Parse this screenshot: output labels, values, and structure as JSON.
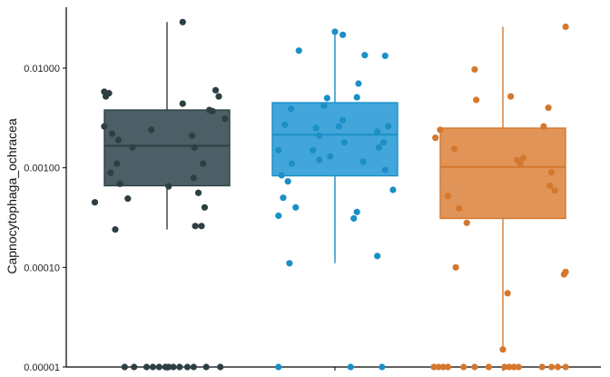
{
  "chart_data": {
    "type": "box",
    "ylabel": "Capnocytophaga_ochracea",
    "y_scale": "log10",
    "ylim": [
      1e-05,
      0.04
    ],
    "y_ticks": [
      {
        "value": 1e-05,
        "label": "0.00001"
      },
      {
        "value": 0.0001,
        "label": "0.00010"
      },
      {
        "value": 0.001,
        "label": "0.00100"
      },
      {
        "value": 0.01,
        "label": "0.01000"
      }
    ],
    "grid": false,
    "legend": "none",
    "groups": [
      {
        "color": "#2d3e44",
        "fill": "#4d5f66",
        "whisker_low": 0.00024,
        "q1": 0.00066,
        "median": 0.00166,
        "q3": 0.0038,
        "whisker_high": 0.029,
        "points": [
          {
            "x": -0.92,
            "y": 0.00045
          },
          {
            "x": -0.8,
            "y": 0.0058
          },
          {
            "x": -0.78,
            "y": 0.0052
          },
          {
            "x": -0.74,
            "y": 0.0056
          },
          {
            "x": -0.8,
            "y": 0.0026
          },
          {
            "x": -0.7,
            "y": 0.0022
          },
          {
            "x": -0.62,
            "y": 0.0019
          },
          {
            "x": -0.72,
            "y": 0.00089
          },
          {
            "x": -0.64,
            "y": 0.0011
          },
          {
            "x": -0.6,
            "y": 0.00069
          },
          {
            "x": -0.44,
            "y": 0.0016
          },
          {
            "x": -0.2,
            "y": 0.0024
          },
          {
            "x": -0.5,
            "y": 0.00049
          },
          {
            "x": -0.66,
            "y": 0.00024
          },
          {
            "x": 0.02,
            "y": 0.00065
          },
          {
            "x": 0.2,
            "y": 0.0044
          },
          {
            "x": 0.32,
            "y": 0.0021
          },
          {
            "x": 0.35,
            "y": 0.0016
          },
          {
            "x": 0.34,
            "y": 0.00079
          },
          {
            "x": 0.4,
            "y": 0.00056
          },
          {
            "x": 0.46,
            "y": 0.0011
          },
          {
            "x": 0.36,
            "y": 0.00026
          },
          {
            "x": 0.44,
            "y": 0.00026
          },
          {
            "x": 0.48,
            "y": 0.0004
          },
          {
            "x": 0.54,
            "y": 0.0038
          },
          {
            "x": 0.58,
            "y": 0.0037
          },
          {
            "x": 0.62,
            "y": 0.006
          },
          {
            "x": 0.66,
            "y": 0.0052
          },
          {
            "x": 0.74,
            "y": 0.0031
          },
          {
            "x": 0.2,
            "y": 0.029
          },
          {
            "x": -0.54,
            "y": 1e-05
          },
          {
            "x": -0.42,
            "y": 1e-05
          },
          {
            "x": -0.26,
            "y": 1e-05
          },
          {
            "x": -0.18,
            "y": 1e-05
          },
          {
            "x": -0.1,
            "y": 1e-05
          },
          {
            "x": -0.02,
            "y": 1e-05
          },
          {
            "x": 0.02,
            "y": 1e-05
          },
          {
            "x": 0.08,
            "y": 1e-05
          },
          {
            "x": 0.16,
            "y": 1e-05
          },
          {
            "x": 0.26,
            "y": 1e-05
          },
          {
            "x": 0.34,
            "y": 1e-05
          },
          {
            "x": 0.5,
            "y": 1e-05
          },
          {
            "x": 0.68,
            "y": 1e-05
          }
        ]
      },
      {
        "color": "#1b8fc6",
        "fill": "#42a6da",
        "whisker_low": 0.00011,
        "q1": 0.00083,
        "median": 0.00215,
        "q3": 0.0045,
        "whisker_high": 0.022,
        "points": [
          {
            "x": -0.72,
            "y": 0.0015
          },
          {
            "x": -0.64,
            "y": 0.0027
          },
          {
            "x": -0.56,
            "y": 0.0039
          },
          {
            "x": -0.46,
            "y": 0.015
          },
          {
            "x": -0.6,
            "y": 0.00073
          },
          {
            "x": -0.66,
            "y": 0.0005
          },
          {
            "x": -0.55,
            "y": 0.0011
          },
          {
            "x": -0.5,
            "y": 0.0004
          },
          {
            "x": -0.68,
            "y": 0.00084
          },
          {
            "x": -0.72,
            "y": 0.00033
          },
          {
            "x": -0.58,
            "y": 0.00011
          },
          {
            "x": -0.28,
            "y": 0.0015
          },
          {
            "x": -0.24,
            "y": 0.0025
          },
          {
            "x": -0.2,
            "y": 0.0021
          },
          {
            "x": -0.14,
            "y": 0.0042
          },
          {
            "x": -0.1,
            "y": 0.005
          },
          {
            "x": -0.06,
            "y": 0.0013
          },
          {
            "x": 0.05,
            "y": 0.0026
          },
          {
            "x": 0.12,
            "y": 0.0018
          },
          {
            "x": 0.1,
            "y": 0.003
          },
          {
            "x": -0.2,
            "y": 0.0012
          },
          {
            "x": 0.0,
            "y": 0.0232
          },
          {
            "x": 0.1,
            "y": 0.0216
          },
          {
            "x": 0.28,
            "y": 0.0051
          },
          {
            "x": 0.3,
            "y": 0.007
          },
          {
            "x": 0.38,
            "y": 0.0135
          },
          {
            "x": 0.36,
            "y": 0.00115
          },
          {
            "x": 0.24,
            "y": 0.00031
          },
          {
            "x": 0.28,
            "y": 0.00036
          },
          {
            "x": 0.54,
            "y": 0.0023
          },
          {
            "x": 0.56,
            "y": 0.0016
          },
          {
            "x": 0.62,
            "y": 0.0018
          },
          {
            "x": 0.64,
            "y": 0.00095
          },
          {
            "x": 0.68,
            "y": 0.0026
          },
          {
            "x": 0.74,
            "y": 0.0006
          },
          {
            "x": 0.64,
            "y": 0.0133
          },
          {
            "x": 0.54,
            "y": 0.00013
          },
          {
            "x": -0.72,
            "y": 1e-05
          },
          {
            "x": 0.2,
            "y": 1e-05
          },
          {
            "x": 0.6,
            "y": 1e-05
          }
        ]
      },
      {
        "color": "#d4782e",
        "fill": "#e09458",
        "whisker_low": 1.5e-05,
        "q1": 0.00031,
        "median": 0.00102,
        "q3": 0.0025,
        "whisker_high": 0.026,
        "points": [
          {
            "x": -0.86,
            "y": 0.002
          },
          {
            "x": -0.8,
            "y": 0.0024
          },
          {
            "x": -0.7,
            "y": 0.00052
          },
          {
            "x": -0.62,
            "y": 0.00155
          },
          {
            "x": -0.56,
            "y": 0.00039
          },
          {
            "x": -0.46,
            "y": 0.00028
          },
          {
            "x": -0.6,
            "y": 0.0001
          },
          {
            "x": -0.36,
            "y": 0.0097
          },
          {
            "x": -0.34,
            "y": 0.0048
          },
          {
            "x": 0.1,
            "y": 0.0052
          },
          {
            "x": 0.18,
            "y": 0.0012
          },
          {
            "x": 0.22,
            "y": 0.0011
          },
          {
            "x": 0.26,
            "y": 0.00125
          },
          {
            "x": 0.06,
            "y": 5.5e-05
          },
          {
            "x": 0.0,
            "y": 1.5e-05
          },
          {
            "x": 0.58,
            "y": 0.004
          },
          {
            "x": 0.52,
            "y": 0.0026
          },
          {
            "x": 0.62,
            "y": 0.0009
          },
          {
            "x": 0.6,
            "y": 0.00066
          },
          {
            "x": 0.66,
            "y": 0.00059
          },
          {
            "x": 0.8,
            "y": 0.026
          },
          {
            "x": 0.8,
            "y": 9e-05
          },
          {
            "x": 0.78,
            "y": 8.5e-05
          },
          {
            "x": -0.88,
            "y": 1e-05
          },
          {
            "x": -0.82,
            "y": 1e-05
          },
          {
            "x": -0.76,
            "y": 1e-05
          },
          {
            "x": -0.7,
            "y": 1e-05
          },
          {
            "x": -0.5,
            "y": 1e-05
          },
          {
            "x": -0.36,
            "y": 1e-05
          },
          {
            "x": -0.18,
            "y": 1e-05
          },
          {
            "x": 0.02,
            "y": 1e-05
          },
          {
            "x": 0.08,
            "y": 1e-05
          },
          {
            "x": 0.14,
            "y": 1e-05
          },
          {
            "x": 0.2,
            "y": 1e-05
          },
          {
            "x": 0.5,
            "y": 1e-05
          },
          {
            "x": 0.62,
            "y": 1e-05
          },
          {
            "x": 0.7,
            "y": 1e-05
          },
          {
            "x": 0.8,
            "y": 1e-05
          }
        ]
      }
    ]
  }
}
